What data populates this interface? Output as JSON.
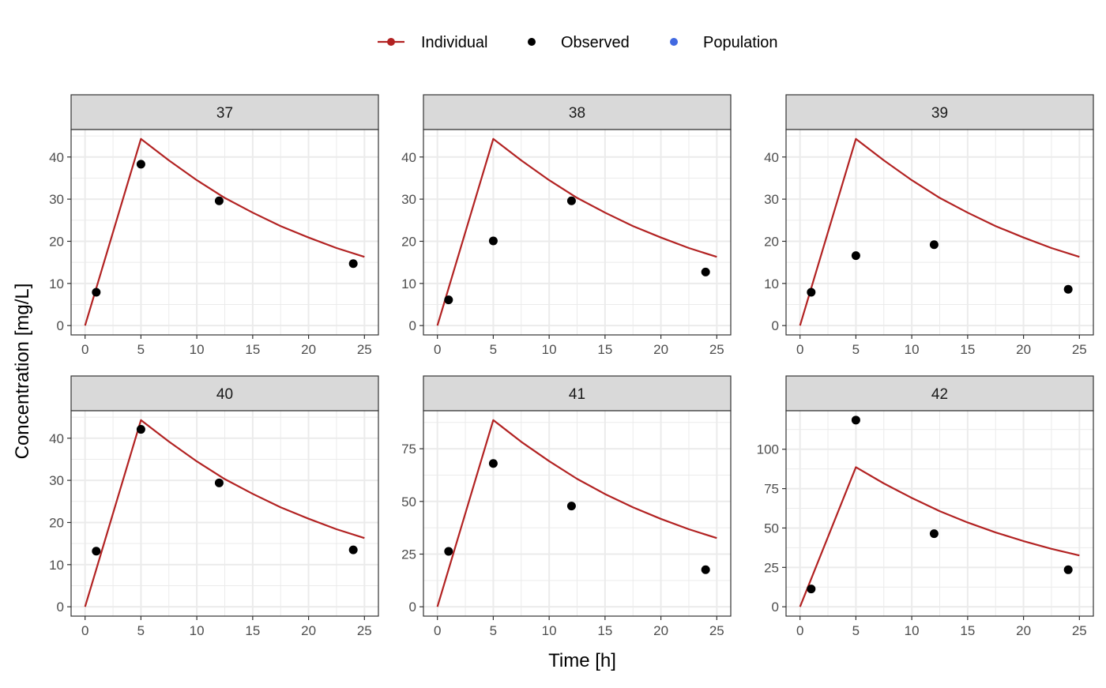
{
  "legend": {
    "placement": "top",
    "items": [
      {
        "label": "Individual",
        "color": "#B22222",
        "kind": "line-point"
      },
      {
        "label": "Observed",
        "color": "#000000",
        "kind": "point"
      },
      {
        "label": "Population",
        "color": "#4169E1",
        "kind": "point"
      }
    ]
  },
  "axes": {
    "xlabel": "Time [h]",
    "ylabel": "Concentration [mg/L]"
  },
  "chart_data": {
    "type": "line",
    "facet_by": "ID",
    "xlim": [
      0,
      25
    ],
    "xticks": [
      0,
      5,
      10,
      15,
      20,
      25
    ],
    "grid": true,
    "panels": [
      {
        "title": "37",
        "ylim": [
          0,
          44.3
        ],
        "yticks": [
          0,
          10,
          20,
          30,
          40
        ],
        "series": [
          {
            "name": "Individual",
            "x": [
              0,
              5,
              7.5,
              10,
              12.5,
              15,
              17.5,
              20,
              22.5,
              25
            ],
            "y": [
              0,
              44.3,
              39.2,
              34.5,
              30.3,
              26.8,
              23.6,
              20.9,
              18.4,
              16.3
            ]
          },
          {
            "name": "Observed",
            "x": [
              1,
              5,
              12,
              24
            ],
            "y": [
              7.9,
              38.3,
              29.6,
              14.7
            ]
          }
        ]
      },
      {
        "title": "38",
        "ylim": [
          0,
          44.3
        ],
        "yticks": [
          0,
          10,
          20,
          30,
          40
        ],
        "series": [
          {
            "name": "Individual",
            "x": [
              0,
              5,
              7.5,
              10,
              12.5,
              15,
              17.5,
              20,
              22.5,
              25
            ],
            "y": [
              0,
              44.3,
              39.2,
              34.5,
              30.3,
              26.8,
              23.6,
              20.9,
              18.4,
              16.3
            ]
          },
          {
            "name": "Observed",
            "x": [
              1,
              5,
              12,
              24
            ],
            "y": [
              6.1,
              20.1,
              29.6,
              12.7
            ]
          }
        ]
      },
      {
        "title": "39",
        "ylim": [
          0,
          44.3
        ],
        "yticks": [
          0,
          10,
          20,
          30,
          40
        ],
        "series": [
          {
            "name": "Individual",
            "x": [
              0,
              5,
              7.5,
              10,
              12.5,
              15,
              17.5,
              20,
              22.5,
              25
            ],
            "y": [
              0,
              44.3,
              39.2,
              34.5,
              30.3,
              26.8,
              23.6,
              20.9,
              18.4,
              16.3
            ]
          },
          {
            "name": "Observed",
            "x": [
              1,
              5,
              12,
              24
            ],
            "y": [
              7.9,
              16.6,
              19.2,
              8.6
            ]
          }
        ]
      },
      {
        "title": "40",
        "ylim": [
          0,
          44.3
        ],
        "yticks": [
          0,
          10,
          20,
          30,
          40
        ],
        "series": [
          {
            "name": "Individual",
            "x": [
              0,
              5,
              7.5,
              10,
              12.5,
              15,
              17.5,
              20,
              22.5,
              25
            ],
            "y": [
              0,
              44.3,
              39.2,
              34.5,
              30.3,
              26.8,
              23.6,
              20.9,
              18.4,
              16.3
            ]
          },
          {
            "name": "Observed",
            "x": [
              1,
              5,
              12,
              24
            ],
            "y": [
              13.2,
              42.1,
              29.4,
              13.5
            ]
          }
        ]
      },
      {
        "title": "41",
        "ylim": [
          0,
          88.6
        ],
        "yticks": [
          0,
          25,
          50,
          75
        ],
        "series": [
          {
            "name": "Individual",
            "x": [
              0,
              5,
              7.5,
              10,
              12.5,
              15,
              17.5,
              20,
              22.5,
              25
            ],
            "y": [
              0,
              88.6,
              78.3,
              69.1,
              60.7,
              53.5,
              47.2,
              41.7,
              36.8,
              32.6
            ]
          },
          {
            "name": "Observed",
            "x": [
              1,
              5,
              12,
              24
            ],
            "y": [
              26.3,
              68.0,
              47.8,
              17.6
            ]
          }
        ]
      },
      {
        "title": "42",
        "ylim": [
          0,
          118.5
        ],
        "yticks": [
          0,
          25,
          50,
          75,
          100
        ],
        "series": [
          {
            "name": "Individual",
            "x": [
              0,
              5,
              7.5,
              10,
              12.5,
              15,
              17.5,
              20,
              22.5,
              25
            ],
            "y": [
              0,
              88.6,
              78.3,
              69.1,
              60.7,
              53.5,
              47.2,
              41.7,
              36.8,
              32.6
            ]
          },
          {
            "name": "Observed",
            "x": [
              1,
              5,
              12,
              24
            ],
            "y": [
              11.3,
              118.5,
              46.4,
              23.5
            ]
          }
        ]
      }
    ]
  }
}
